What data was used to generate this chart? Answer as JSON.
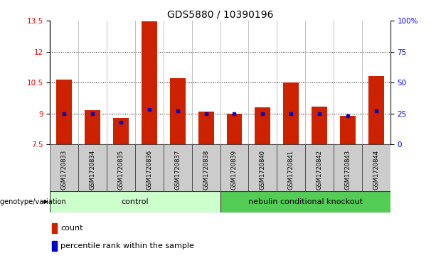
{
  "title": "GDS5880 / 10390196",
  "samples": [
    "GSM1720833",
    "GSM1720834",
    "GSM1720835",
    "GSM1720836",
    "GSM1720837",
    "GSM1720838",
    "GSM1720839",
    "GSM1720840",
    "GSM1720841",
    "GSM1720842",
    "GSM1720843",
    "GSM1720844"
  ],
  "counts": [
    10.65,
    9.15,
    8.8,
    13.45,
    10.7,
    9.1,
    9.0,
    9.3,
    10.5,
    9.35,
    8.9,
    10.8
  ],
  "percentiles": [
    25,
    25,
    18,
    28,
    27,
    25,
    25,
    25,
    25,
    25,
    23,
    27
  ],
  "ymin": 7.5,
  "ymax": 13.5,
  "yticks": [
    7.5,
    9.0,
    10.5,
    12.0,
    13.5
  ],
  "ytick_labels": [
    "7.5",
    "9",
    "10.5",
    "12",
    "13.5"
  ],
  "right_yticks": [
    0,
    25,
    50,
    75,
    100
  ],
  "right_ytick_labels": [
    "0",
    "25",
    "50",
    "75",
    "100%"
  ],
  "bar_color": "#cc2200",
  "dot_color": "#0000cc",
  "bar_bottom": 7.5,
  "n_control": 6,
  "n_knockout": 6,
  "control_label": "control",
  "knockout_label": "nebulin conditional knockout",
  "control_color": "#ccffcc",
  "knockout_color": "#55cc55",
  "group_label": "genotype/variation",
  "legend_count_label": "count",
  "legend_pct_label": "percentile rank within the sample",
  "title_fontsize": 10,
  "tick_fontsize": 7.5,
  "sample_fontsize": 6.0,
  "bar_width": 0.55,
  "sample_box_color": "#cccccc",
  "spine_color": "#333333"
}
